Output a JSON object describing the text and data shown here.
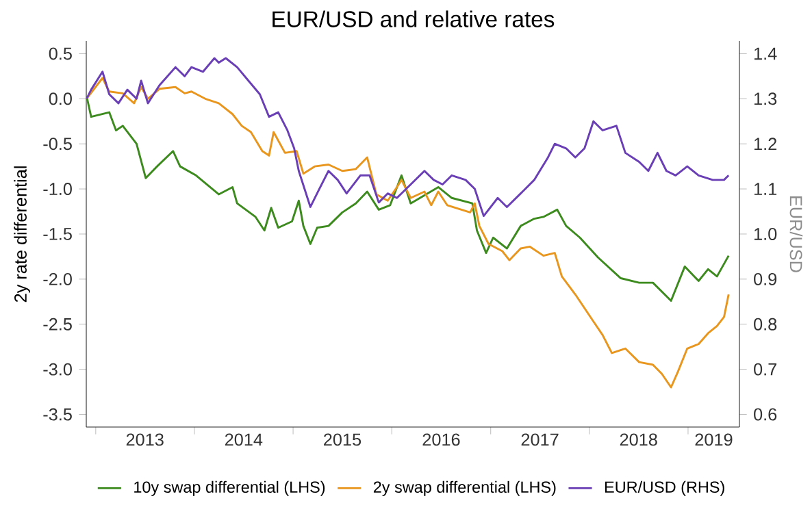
{
  "chart_data": {
    "type": "line",
    "title": "EUR/USD and relative rates",
    "ylabel": "2y rate differential",
    "y2label": "EUR/USD",
    "xlim": [
      "2012-11-27",
      "2019-07-10"
    ],
    "xticks": [
      {
        "value": "2013-01-01",
        "label": null
      },
      {
        "value": "2014-01-01",
        "label": null
      },
      {
        "value": "2015-01-01",
        "label": null
      },
      {
        "value": "2016-01-01",
        "label": null
      },
      {
        "value": "2017-01-01",
        "label": null
      },
      {
        "value": "2018-01-01",
        "label": null
      },
      {
        "value": "2019-01-01",
        "label": null
      },
      {
        "value": "2013-07-02",
        "label": "2013"
      },
      {
        "value": "2014-07-02",
        "label": "2014"
      },
      {
        "value": "2015-07-02",
        "label": "2015"
      },
      {
        "value": "2016-07-02",
        "label": "2016"
      },
      {
        "value": "2017-07-02",
        "label": "2017"
      },
      {
        "value": "2018-07-02",
        "label": "2018"
      },
      {
        "value": "2019-04-06",
        "label": "2019"
      }
    ],
    "ylim": [
      -3.64,
      0.64
    ],
    "yticks": [
      -3.5,
      {
        "value": -3,
        "label": "-3.0"
      },
      -2.5,
      {
        "value": -2,
        "label": "-2.0"
      },
      -1.5,
      {
        "value": -1,
        "label": "-1.0"
      },
      -0.5,
      {
        "value": 0,
        "label": "0.0"
      },
      0.5
    ],
    "y2lim": [
      0.572,
      1.428
    ],
    "y2ticks": [
      0.6,
      0.7,
      0.8,
      0.9,
      {
        "value": 1,
        "label": "1.0"
      },
      1.1,
      1.2,
      1.3,
      1.4
    ],
    "legend": "bottom",
    "grid": false,
    "marker": "none",
    "line_style": "solid",
    "series": [
      {
        "name": "10y swap differential (LHS)",
        "color": "#3d8b1f",
        "x": [
          "2012-11-28",
          "2012-12-15",
          "2013-02-20",
          "2013-03-17",
          "2013-04-11",
          "2013-06-01",
          "2013-07-05",
          "2013-08-16",
          "2013-10-14",
          "2013-11-09",
          "2014-01-07",
          "2014-04-01",
          "2014-05-22",
          "2014-06-08",
          "2014-08-15",
          "2014-09-17",
          "2014-10-12",
          "2014-11-07",
          "2014-12-28",
          "2015-01-22",
          "2015-02-08",
          "2015-03-06",
          "2015-03-31",
          "2015-05-12",
          "2015-07-02",
          "2015-08-21",
          "2015-10-02",
          "2015-11-14",
          "2015-12-26",
          "2016-02-06",
          "2016-03-11",
          "2016-06-21",
          "2016-08-10",
          "2016-10-25",
          "2016-11-11",
          "2016-12-15",
          "2017-01-10",
          "2017-03-02",
          "2017-04-22",
          "2017-06-11",
          "2017-07-15",
          "2017-09-04",
          "2017-10-07",
          "2017-11-27",
          "2018-02-02",
          "2018-04-27",
          "2018-07-04",
          "2018-08-24",
          "2018-10-30",
          "2018-12-20",
          "2019-02-09",
          "2019-03-16",
          "2019-04-18",
          "2019-05-31"
        ],
        "values": [
          0.03,
          -0.2,
          -0.15,
          -0.35,
          -0.3,
          -0.5,
          -0.88,
          -0.75,
          -0.58,
          -0.75,
          -0.85,
          -1.06,
          -0.98,
          -1.16,
          -1.31,
          -1.46,
          -1.21,
          -1.43,
          -1.36,
          -1.13,
          -1.41,
          -1.61,
          -1.43,
          -1.41,
          -1.26,
          -1.16,
          -1.03,
          -1.23,
          -1.18,
          -0.85,
          -1.16,
          -0.98,
          -1.1,
          -1.16,
          -1.46,
          -1.71,
          -1.54,
          -1.66,
          -1.41,
          -1.33,
          -1.31,
          -1.23,
          -1.41,
          -1.54,
          -1.76,
          -1.99,
          -2.04,
          -2.04,
          -2.24,
          -1.86,
          -2.02,
          -1.89,
          -1.97,
          -1.74
        ]
      },
      {
        "name": "2y swap differential (LHS)",
        "color": "#e8961e",
        "x": [
          "2012-11-28",
          "2013-01-26",
          "2013-02-20",
          "2013-04-11",
          "2013-05-23",
          "2013-06-18",
          "2013-07-13",
          "2013-08-25",
          "2013-10-23",
          "2013-11-26",
          "2013-12-21",
          "2014-02-10",
          "2014-04-01",
          "2014-05-22",
          "2014-06-25",
          "2014-07-29",
          "2014-09-09",
          "2014-10-04",
          "2014-10-21",
          "2014-12-02",
          "2015-01-14",
          "2015-02-08",
          "2015-03-22",
          "2015-05-12",
          "2015-07-02",
          "2015-08-21",
          "2015-10-02",
          "2015-11-05",
          "2015-12-17",
          "2016-01-20",
          "2016-02-06",
          "2016-03-11",
          "2016-05-01",
          "2016-05-26",
          "2016-06-21",
          "2016-07-24",
          "2016-10-17",
          "2016-11-03",
          "2016-11-20",
          "2016-12-24",
          "2017-02-13",
          "2017-03-11",
          "2017-04-22",
          "2017-05-26",
          "2017-07-15",
          "2017-08-26",
          "2017-09-21",
          "2017-11-10",
          "2018-01-16",
          "2018-02-19",
          "2018-03-25",
          "2018-05-14",
          "2018-07-04",
          "2018-08-24",
          "2018-09-26",
          "2018-10-30",
          "2018-11-24",
          "2018-12-29",
          "2019-02-09",
          "2019-03-16",
          "2019-04-18",
          "2019-05-14",
          "2019-05-31"
        ],
        "values": [
          0.0,
          0.23,
          0.08,
          0.06,
          -0.05,
          0.13,
          0.0,
          0.11,
          0.13,
          0.06,
          0.08,
          0.0,
          -0.05,
          -0.17,
          -0.3,
          -0.37,
          -0.58,
          -0.63,
          -0.37,
          -0.6,
          -0.58,
          -0.83,
          -0.75,
          -0.73,
          -0.8,
          -0.78,
          -0.65,
          -1.06,
          -1.13,
          -0.98,
          -0.9,
          -1.1,
          -1.03,
          -1.18,
          -1.03,
          -1.18,
          -1.26,
          -1.16,
          -1.41,
          -1.61,
          -1.69,
          -1.79,
          -1.66,
          -1.64,
          -1.74,
          -1.71,
          -1.97,
          -2.17,
          -2.47,
          -2.62,
          -2.82,
          -2.77,
          -2.92,
          -2.95,
          -3.05,
          -3.2,
          -3.03,
          -2.77,
          -2.72,
          -2.6,
          -2.52,
          -2.42,
          -2.17
        ]
      },
      {
        "name": "EUR/USD (RHS)",
        "color": "#6a3fb5",
        "axis": "y2",
        "x": [
          "2012-11-28",
          "2012-12-15",
          "2013-01-26",
          "2013-02-20",
          "2013-03-26",
          "2013-04-28",
          "2013-06-01",
          "2013-06-18",
          "2013-07-13",
          "2013-08-25",
          "2013-10-23",
          "2013-11-26",
          "2013-12-21",
          "2014-02-02",
          "2014-03-16",
          "2014-04-01",
          "2014-04-27",
          "2014-06-08",
          "2014-07-20",
          "2014-08-31",
          "2014-10-04",
          "2014-11-07",
          "2014-12-11",
          "2015-01-05",
          "2015-01-22",
          "2015-03-06",
          "2015-04-08",
          "2015-05-12",
          "2015-06-15",
          "2015-07-18",
          "2015-09-07",
          "2015-10-11",
          "2015-11-14",
          "2015-12-17",
          "2016-01-20",
          "2016-03-11",
          "2016-05-01",
          "2016-06-04",
          "2016-07-07",
          "2016-08-10",
          "2016-09-30",
          "2016-11-03",
          "2016-12-06",
          "2017-01-27",
          "2017-03-02",
          "2017-04-22",
          "2017-06-11",
          "2017-08-01",
          "2017-08-26",
          "2017-10-07",
          "2017-11-10",
          "2017-12-14",
          "2018-01-16",
          "2018-02-19",
          "2018-04-11",
          "2018-05-14",
          "2018-07-04",
          "2018-08-07",
          "2018-09-10",
          "2018-10-13",
          "2018-11-16",
          "2018-12-29",
          "2019-02-09",
          "2019-04-02",
          "2019-05-14",
          "2019-05-31"
        ],
        "values": [
          1.3,
          1.32,
          1.36,
          1.31,
          1.29,
          1.32,
          1.3,
          1.34,
          1.29,
          1.33,
          1.37,
          1.35,
          1.37,
          1.36,
          1.39,
          1.38,
          1.39,
          1.37,
          1.34,
          1.31,
          1.26,
          1.27,
          1.23,
          1.19,
          1.14,
          1.06,
          1.1,
          1.14,
          1.12,
          1.09,
          1.13,
          1.13,
          1.07,
          1.09,
          1.08,
          1.11,
          1.14,
          1.12,
          1.11,
          1.13,
          1.12,
          1.1,
          1.04,
          1.08,
          1.06,
          1.09,
          1.12,
          1.17,
          1.2,
          1.19,
          1.17,
          1.19,
          1.25,
          1.23,
          1.24,
          1.18,
          1.16,
          1.14,
          1.18,
          1.14,
          1.13,
          1.15,
          1.13,
          1.12,
          1.12,
          1.13
        ]
      }
    ]
  }
}
